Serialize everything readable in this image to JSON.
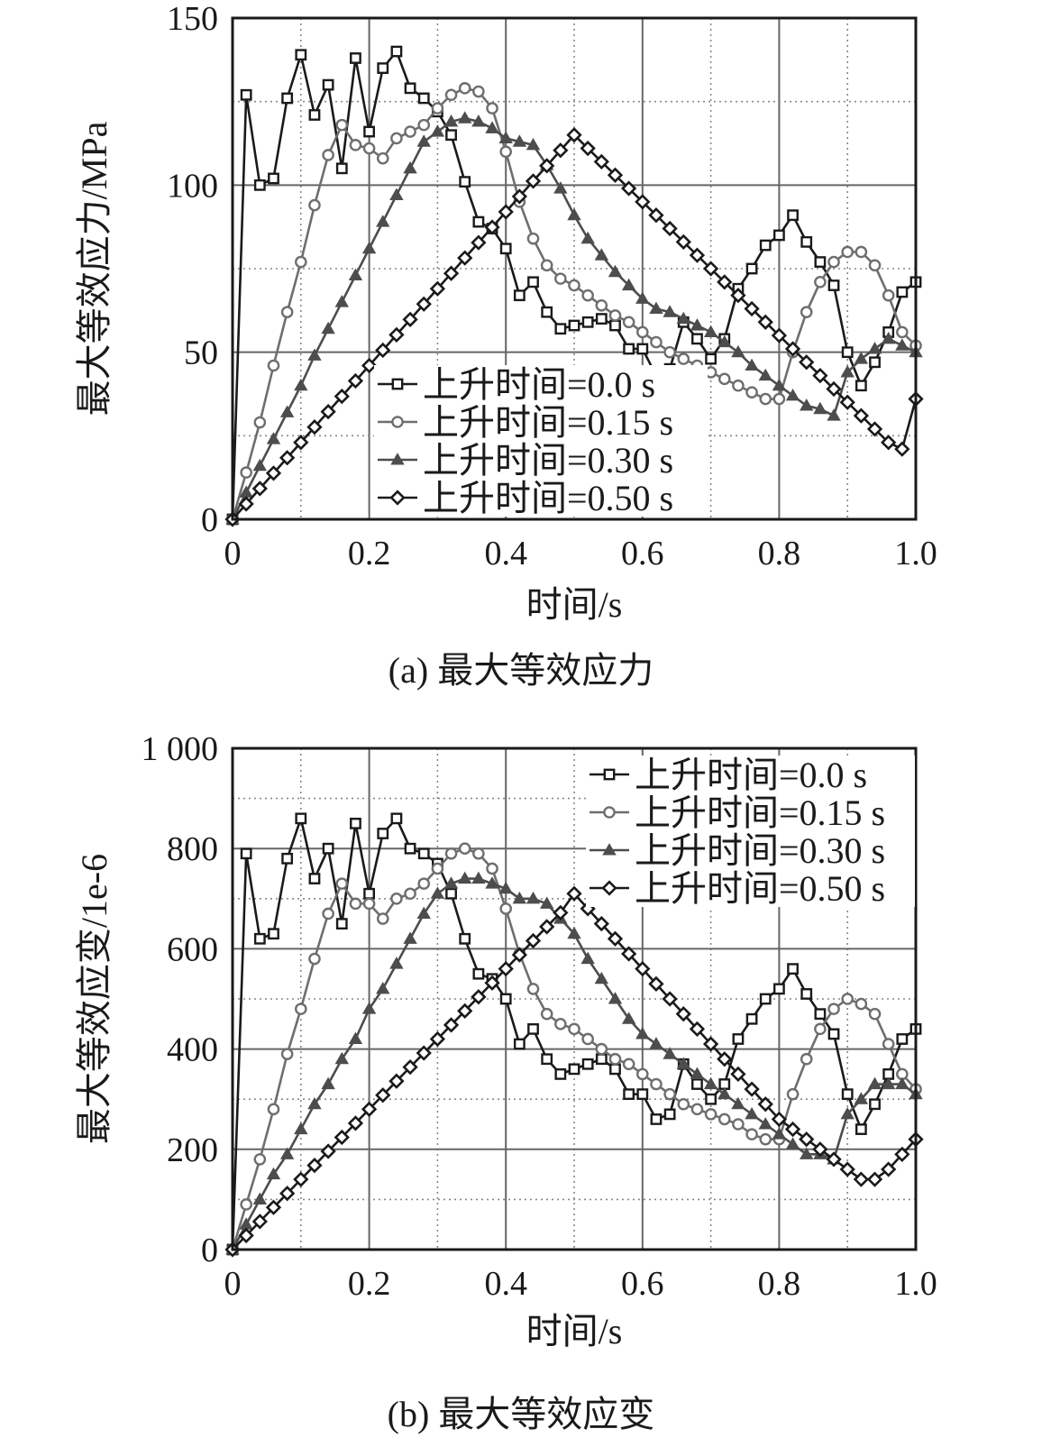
{
  "chart_data": [
    {
      "id": "a",
      "type": "line",
      "caption": "(a) 最大等效应力",
      "xlabel": "时间/s",
      "ylabel": "最大等效应力/MPa",
      "xlim": [
        0,
        1.0
      ],
      "ylim": [
        0,
        150
      ],
      "xticks": [
        "0",
        "0.2",
        "0.4",
        "0.6",
        "0.8",
        "1.0"
      ],
      "yticks": [
        "0",
        "50",
        "100",
        "150"
      ],
      "xtick_values": [
        0,
        0.2,
        0.4,
        0.6,
        0.8,
        1.0
      ],
      "ytick_values": [
        0,
        50,
        100,
        150
      ],
      "grid": true,
      "legend_position": "lower-center",
      "series": [
        {
          "name": "上升时间=0.0 s",
          "marker": "square",
          "color": "#1a1a1a",
          "x": [
            0,
            0.02,
            0.04,
            0.06,
            0.08,
            0.1,
            0.12,
            0.14,
            0.16,
            0.18,
            0.2,
            0.22,
            0.24,
            0.26,
            0.28,
            0.3,
            0.32,
            0.34,
            0.36,
            0.38,
            0.4,
            0.42,
            0.44,
            0.46,
            0.48,
            0.5,
            0.52,
            0.54,
            0.56,
            0.58,
            0.6,
            0.62,
            0.64,
            0.66,
            0.68,
            0.7,
            0.72,
            0.74,
            0.76,
            0.78,
            0.8,
            0.82,
            0.84,
            0.86,
            0.88,
            0.9,
            0.92,
            0.94,
            0.96,
            0.98,
            1.0
          ],
          "y": [
            0,
            127,
            100,
            102,
            126,
            139,
            121,
            130,
            105,
            138,
            116,
            135,
            140,
            129,
            126,
            122,
            115,
            101,
            89,
            87,
            81,
            67,
            71,
            62,
            57,
            58,
            59,
            60,
            58,
            51,
            51,
            43,
            45,
            59,
            54,
            48,
            54,
            69,
            75,
            82,
            85,
            91,
            83,
            77,
            70,
            50,
            40,
            47,
            56,
            68,
            71
          ]
        },
        {
          "name": "上升时间=0.15 s",
          "marker": "circle",
          "color": "#6e6e6e",
          "x": [
            0,
            0.02,
            0.04,
            0.06,
            0.08,
            0.1,
            0.12,
            0.14,
            0.16,
            0.18,
            0.2,
            0.22,
            0.24,
            0.26,
            0.28,
            0.3,
            0.32,
            0.34,
            0.36,
            0.38,
            0.4,
            0.42,
            0.44,
            0.46,
            0.48,
            0.5,
            0.52,
            0.54,
            0.56,
            0.58,
            0.6,
            0.62,
            0.64,
            0.66,
            0.68,
            0.7,
            0.72,
            0.74,
            0.76,
            0.78,
            0.8,
            0.82,
            0.84,
            0.86,
            0.88,
            0.9,
            0.92,
            0.94,
            0.96,
            0.98,
            1.0
          ],
          "y": [
            0,
            14,
            29,
            46,
            62,
            77,
            94,
            109,
            118,
            112,
            111,
            108,
            114,
            116,
            118,
            123,
            127,
            129,
            128,
            123,
            110,
            95,
            84,
            76,
            72,
            70,
            67,
            64,
            61,
            59,
            56,
            53,
            50,
            48,
            46,
            44,
            42,
            40,
            38,
            36,
            36,
            50,
            62,
            71,
            77,
            80,
            80,
            76,
            67,
            56,
            52
          ]
        },
        {
          "name": "上升时间=0.30 s",
          "marker": "triangle",
          "color": "#4d4d4d",
          "x": [
            0,
            0.02,
            0.04,
            0.06,
            0.08,
            0.1,
            0.12,
            0.14,
            0.16,
            0.18,
            0.2,
            0.22,
            0.24,
            0.26,
            0.28,
            0.3,
            0.32,
            0.34,
            0.36,
            0.38,
            0.4,
            0.42,
            0.44,
            0.46,
            0.48,
            0.5,
            0.52,
            0.54,
            0.56,
            0.58,
            0.6,
            0.62,
            0.64,
            0.66,
            0.68,
            0.7,
            0.72,
            0.74,
            0.76,
            0.78,
            0.8,
            0.82,
            0.84,
            0.86,
            0.88,
            0.9,
            0.92,
            0.94,
            0.96,
            0.98,
            1.0
          ],
          "y": [
            0,
            8,
            16,
            24,
            32,
            40,
            49,
            57,
            65,
            73,
            81,
            89,
            97,
            105,
            113,
            116,
            119,
            120,
            119,
            117,
            114,
            113,
            112,
            106,
            99,
            91,
            84,
            79,
            74,
            70,
            66,
            63,
            62,
            60,
            58,
            56,
            53,
            50,
            46,
            43,
            40,
            37,
            34,
            33,
            31,
            44,
            48,
            51,
            54,
            52,
            50
          ]
        },
        {
          "name": "上升时间=0.50 s",
          "marker": "diamond",
          "color": "#1a1a1a",
          "x": [
            0,
            0.02,
            0.04,
            0.06,
            0.08,
            0.1,
            0.12,
            0.14,
            0.16,
            0.18,
            0.2,
            0.22,
            0.24,
            0.26,
            0.28,
            0.3,
            0.32,
            0.34,
            0.36,
            0.38,
            0.4,
            0.42,
            0.44,
            0.46,
            0.48,
            0.5,
            0.52,
            0.54,
            0.56,
            0.58,
            0.6,
            0.62,
            0.64,
            0.66,
            0.68,
            0.7,
            0.72,
            0.74,
            0.76,
            0.78,
            0.8,
            0.82,
            0.84,
            0.86,
            0.88,
            0.9,
            0.92,
            0.94,
            0.96,
            0.98,
            1.0
          ],
          "y": [
            0,
            4.6,
            9.2,
            13.8,
            18.4,
            23,
            27.6,
            32.2,
            36.8,
            41.4,
            46,
            50.6,
            55.2,
            59.8,
            64.4,
            69,
            73.6,
            78.2,
            82.8,
            87.4,
            92,
            96.6,
            101.2,
            105.8,
            110.4,
            115,
            111,
            107,
            103,
            99,
            95,
            91,
            87,
            83,
            79,
            75,
            71,
            67,
            63,
            59,
            55,
            51,
            47,
            43,
            39,
            35,
            31,
            27,
            23,
            21,
            36
          ]
        }
      ]
    },
    {
      "id": "b",
      "type": "line",
      "caption": "(b) 最大等效应变",
      "xlabel": "时间/s",
      "ylabel": "最大等效应变/1e-6",
      "xlim": [
        0,
        1.0
      ],
      "ylim": [
        0,
        1000
      ],
      "xticks": [
        "0",
        "0.2",
        "0.4",
        "0.6",
        "0.8",
        "1.0"
      ],
      "yticks": [
        "0",
        "200",
        "400",
        "600",
        "800",
        "1 000"
      ],
      "xtick_values": [
        0,
        0.2,
        0.4,
        0.6,
        0.8,
        1.0
      ],
      "ytick_values": [
        0,
        200,
        400,
        600,
        800,
        1000
      ],
      "grid": true,
      "legend_position": "top-right",
      "series": [
        {
          "name": "上升时间=0.0 s",
          "marker": "square",
          "color": "#1a1a1a",
          "x": [
            0,
            0.02,
            0.04,
            0.06,
            0.08,
            0.1,
            0.12,
            0.14,
            0.16,
            0.18,
            0.2,
            0.22,
            0.24,
            0.26,
            0.28,
            0.3,
            0.32,
            0.34,
            0.36,
            0.38,
            0.4,
            0.42,
            0.44,
            0.46,
            0.48,
            0.5,
            0.52,
            0.54,
            0.56,
            0.58,
            0.6,
            0.62,
            0.64,
            0.66,
            0.68,
            0.7,
            0.72,
            0.74,
            0.76,
            0.78,
            0.8,
            0.82,
            0.84,
            0.86,
            0.88,
            0.9,
            0.92,
            0.94,
            0.96,
            0.98,
            1.0
          ],
          "y": [
            0,
            790,
            620,
            630,
            780,
            860,
            740,
            800,
            650,
            850,
            710,
            830,
            860,
            800,
            790,
            770,
            710,
            620,
            550,
            540,
            500,
            410,
            440,
            380,
            350,
            360,
            370,
            380,
            360,
            310,
            310,
            260,
            270,
            370,
            330,
            300,
            330,
            420,
            460,
            500,
            520,
            560,
            510,
            470,
            430,
            310,
            240,
            290,
            350,
            420,
            440
          ]
        },
        {
          "name": "上升时间=0.15 s",
          "marker": "circle",
          "color": "#6e6e6e",
          "x": [
            0,
            0.02,
            0.04,
            0.06,
            0.08,
            0.1,
            0.12,
            0.14,
            0.16,
            0.18,
            0.2,
            0.22,
            0.24,
            0.26,
            0.28,
            0.3,
            0.32,
            0.34,
            0.36,
            0.38,
            0.4,
            0.42,
            0.44,
            0.46,
            0.48,
            0.5,
            0.52,
            0.54,
            0.56,
            0.58,
            0.6,
            0.62,
            0.64,
            0.66,
            0.68,
            0.7,
            0.72,
            0.74,
            0.76,
            0.78,
            0.8,
            0.82,
            0.84,
            0.86,
            0.88,
            0.9,
            0.92,
            0.94,
            0.96,
            0.98,
            1.0
          ],
          "y": [
            0,
            90,
            180,
            280,
            390,
            480,
            580,
            670,
            730,
            690,
            690,
            660,
            700,
            710,
            730,
            760,
            790,
            800,
            790,
            760,
            680,
            590,
            520,
            470,
            450,
            440,
            420,
            400,
            380,
            370,
            350,
            330,
            310,
            290,
            280,
            270,
            260,
            250,
            230,
            220,
            220,
            310,
            380,
            440,
            480,
            500,
            490,
            470,
            410,
            350,
            320
          ]
        },
        {
          "name": "上升时间=0.30 s",
          "marker": "triangle",
          "color": "#4d4d4d",
          "x": [
            0,
            0.02,
            0.04,
            0.06,
            0.08,
            0.1,
            0.12,
            0.14,
            0.16,
            0.18,
            0.2,
            0.22,
            0.24,
            0.26,
            0.28,
            0.3,
            0.32,
            0.34,
            0.36,
            0.38,
            0.4,
            0.42,
            0.44,
            0.46,
            0.48,
            0.5,
            0.52,
            0.54,
            0.56,
            0.58,
            0.6,
            0.62,
            0.64,
            0.66,
            0.68,
            0.7,
            0.72,
            0.74,
            0.76,
            0.78,
            0.8,
            0.82,
            0.84,
            0.86,
            0.88,
            0.9,
            0.92,
            0.94,
            0.96,
            0.98,
            1.0
          ],
          "y": [
            0,
            50,
            100,
            150,
            190,
            240,
            290,
            330,
            380,
            420,
            480,
            520,
            570,
            620,
            670,
            710,
            730,
            740,
            740,
            730,
            720,
            700,
            700,
            690,
            660,
            630,
            580,
            540,
            500,
            460,
            430,
            410,
            390,
            370,
            350,
            330,
            310,
            290,
            270,
            250,
            230,
            210,
            190,
            190,
            180,
            270,
            300,
            330,
            330,
            330,
            310
          ]
        },
        {
          "name": "上升时间=0.50 s",
          "marker": "diamond",
          "color": "#1a1a1a",
          "x": [
            0,
            0.02,
            0.04,
            0.06,
            0.08,
            0.1,
            0.12,
            0.14,
            0.16,
            0.18,
            0.2,
            0.22,
            0.24,
            0.26,
            0.28,
            0.3,
            0.32,
            0.34,
            0.36,
            0.38,
            0.4,
            0.42,
            0.44,
            0.46,
            0.48,
            0.5,
            0.52,
            0.54,
            0.56,
            0.58,
            0.6,
            0.62,
            0.64,
            0.66,
            0.68,
            0.7,
            0.72,
            0.74,
            0.76,
            0.78,
            0.8,
            0.82,
            0.84,
            0.86,
            0.88,
            0.9,
            0.92,
            0.94,
            0.96,
            0.98,
            1.0
          ],
          "y": [
            0,
            28,
            56,
            84,
            112,
            140,
            168,
            196,
            224,
            252,
            280,
            308,
            336,
            364,
            392,
            420,
            448,
            476,
            504,
            532,
            560,
            588,
            616,
            644,
            672,
            710,
            680,
            650,
            620,
            590,
            560,
            530,
            500,
            470,
            440,
            410,
            380,
            350,
            320,
            290,
            260,
            240,
            220,
            200,
            180,
            160,
            140,
            140,
            160,
            190,
            220
          ]
        }
      ]
    }
  ]
}
